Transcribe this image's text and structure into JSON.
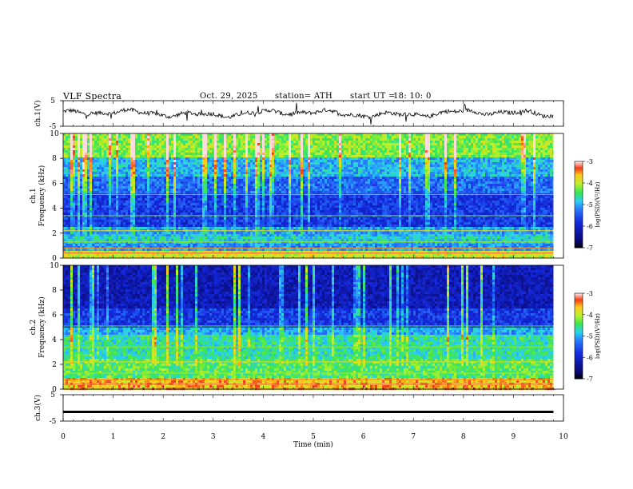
{
  "header": {
    "title": "VLF  Spectra",
    "date": "Oct. 29, 2025",
    "station": "station= ATH",
    "start_label": "start  UT  =",
    "start_time": "18: 10: 0"
  },
  "chart_data": [
    {
      "type": "line",
      "name": "ch1-waveform",
      "ylabel": "ch.1(V)",
      "ylim": [
        -5,
        5
      ],
      "yticks": [
        "5",
        "-5"
      ],
      "x_range_min": [
        0,
        9.8
      ],
      "description_values": "noisy waveform fluctuating between about -3 and +3 V"
    },
    {
      "type": "heatmap",
      "name": "ch1-spectrogram",
      "ylabel": "ch.1\nFrequency  (kHz)",
      "ylabel_line1": "ch.1",
      "ylabel_line2": "Frequency  (kHz)",
      "ylim": [
        0,
        10
      ],
      "yticks": [
        "0",
        "2",
        "4",
        "6",
        "8",
        "10"
      ],
      "colorbar": {
        "label": "log(PSD)(V²/Hz)",
        "range": [
          -7,
          -3
        ],
        "ticks": [
          "-3",
          "-4",
          "-5",
          "-6",
          "-7"
        ]
      }
    },
    {
      "type": "heatmap",
      "name": "ch2-spectrogram",
      "ylabel_line1": "ch.2",
      "ylabel_line2": "Frequency  (kHz)",
      "ylim": [
        0,
        10
      ],
      "yticks": [
        "0",
        "2",
        "4",
        "6",
        "8",
        "10"
      ],
      "colorbar": {
        "label": "log(PSD)(V²/Hz)",
        "range": [
          -7,
          -3
        ],
        "ticks": [
          "-3",
          "-4",
          "-5",
          "-6",
          "-7"
        ]
      }
    },
    {
      "type": "line",
      "name": "ch3-waveform",
      "ylabel": "ch.3(V)",
      "ylim": [
        -5,
        5
      ],
      "yticks": [
        "5",
        "-5"
      ],
      "constant_value": -1.5
    }
  ],
  "xaxis": {
    "label": "Time  (min)",
    "ticks": [
      "0",
      "1",
      "2",
      "3",
      "4",
      "5",
      "6",
      "7",
      "8",
      "9",
      "10"
    ],
    "range": [
      0,
      10
    ],
    "data_end": 9.8
  },
  "colorbar_label": "log(PSD)(V²/Hz)",
  "colorbar_ticks": [
    "-3",
    "-4",
    "-5",
    "-6",
    "-7"
  ]
}
